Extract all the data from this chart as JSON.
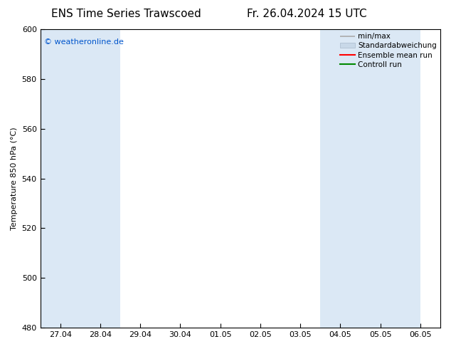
{
  "title_left": "ENS Time Series Trawscoed",
  "title_right": "Fr. 26.04.2024 15 UTC",
  "ylabel": "Temperature 850 hPa (°C)",
  "xlim_labels": [
    "27.04",
    "28.04",
    "29.04",
    "30.04",
    "01.05",
    "02.05",
    "03.05",
    "04.05",
    "05.05",
    "06.05"
  ],
  "ylim": [
    480,
    600
  ],
  "yticks": [
    480,
    500,
    520,
    540,
    560,
    580,
    600
  ],
  "watermark": "© weatheronline.de",
  "watermark_color": "#0055cc",
  "background_color": "#ffffff",
  "plot_bg_color": "#ffffff",
  "shaded_bands_color": "#dbe8f5",
  "legend_items": [
    {
      "label": "min/max",
      "color": "#aaaaaa",
      "type": "minmax"
    },
    {
      "label": "Standardabweichung",
      "color": "#c8d8e8",
      "type": "std"
    },
    {
      "label": "Ensemble mean run",
      "color": "#ff0000",
      "type": "line"
    },
    {
      "label": "Controll run",
      "color": "#008800",
      "type": "line"
    }
  ],
  "n_xticks": 10,
  "title_fontsize": 11,
  "axis_fontsize": 8,
  "tick_fontsize": 8,
  "legend_fontsize": 7.5
}
